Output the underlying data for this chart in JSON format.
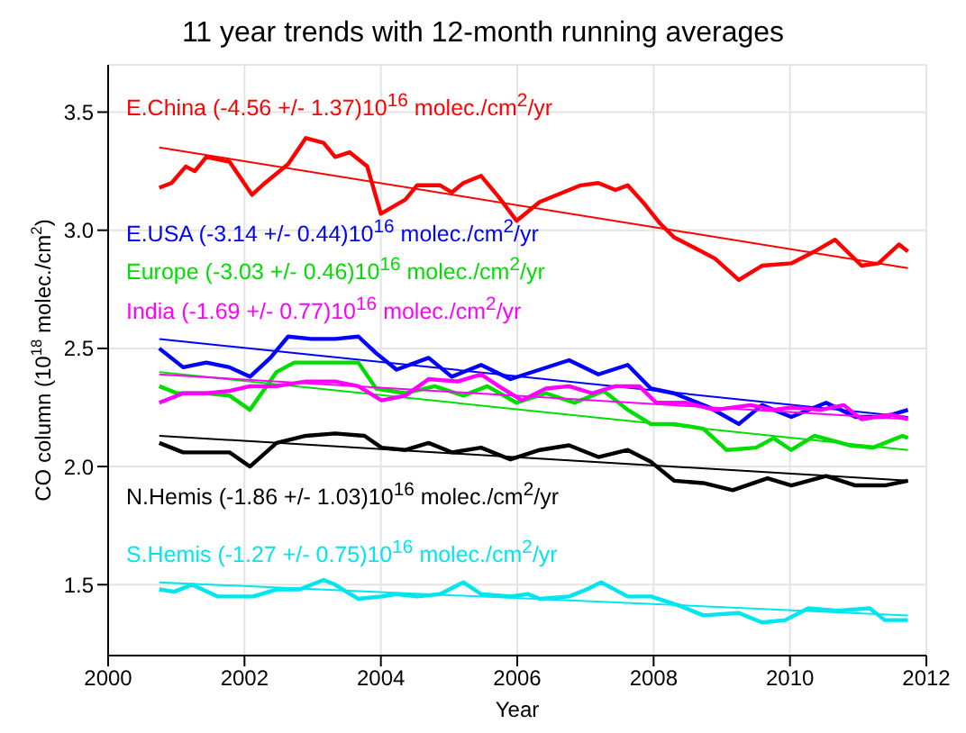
{
  "chart_data": {
    "type": "line",
    "title": "11 year trends with 12-month running averages",
    "xlabel": "Year",
    "ylabel": "CO column (10$^{18}$ molec./cm$^{2}$)",
    "xlim": [
      2000,
      2012
    ],
    "xticks": [
      2000,
      2002,
      2004,
      2006,
      2008,
      2010,
      2012
    ],
    "ylim": [
      1.2,
      3.7
    ],
    "yticks": [
      1.5,
      {
        "value": 2,
        "label": "2.0"
      },
      2.5,
      {
        "value": 3,
        "label": "3.0"
      },
      3.5
    ],
    "grid": true,
    "marker": "none",
    "line_style": "solid",
    "series": [
      {
        "name": "E.China (-4.56 +/- 1.37)10$^{16}$ molec./cm$^{2}$/yr",
        "color": "#ff0000",
        "x": [
          2000.75,
          2000.93,
          2001.14,
          2001.27,
          2001.44,
          2001.78,
          2002.11,
          2002.3,
          2002.64,
          2002.9,
          2003.16,
          2003.33,
          2003.54,
          2003.8,
          2004.0,
          2004.36,
          2004.53,
          2004.87,
          2005.04,
          2005.21,
          2005.47,
          2005.73,
          2005.99,
          2006.33,
          2006.93,
          2007.19,
          2007.44,
          2007.62,
          2007.87,
          2008.09,
          2008.3,
          2008.64,
          2008.9,
          2009.25,
          2009.59,
          2010.02,
          2010.36,
          2010.66,
          2011.05,
          2011.3,
          2011.6,
          2011.73
        ],
        "values": [
          3.18,
          3.2,
          3.27,
          3.25,
          3.31,
          3.29,
          3.15,
          3.2,
          3.28,
          3.39,
          3.37,
          3.31,
          3.33,
          3.27,
          3.07,
          3.13,
          3.19,
          3.19,
          3.16,
          3.2,
          3.23,
          3.14,
          3.04,
          3.12,
          3.19,
          3.2,
          3.17,
          3.19,
          3.11,
          3.03,
          2.97,
          2.92,
          2.88,
          2.79,
          2.85,
          2.86,
          2.91,
          2.96,
          2.85,
          2.86,
          2.94,
          2.91
        ]
      },
      {
        "color": "#ff0000",
        "x": [
          2000.75,
          2011.73
        ],
        "values": [
          3.35,
          2.84
        ]
      },
      {
        "name": "E.USA (-3.14 +/- 0.44)10$^{16}$ molec./cm$^{2}$/yr",
        "color": "#0000ff",
        "x": [
          2000.75,
          2001.1,
          2001.44,
          2001.78,
          2002.08,
          2002.38,
          2002.64,
          2002.98,
          2003.33,
          2003.67,
          2003.93,
          2004.23,
          2004.7,
          2005.04,
          2005.47,
          2005.9,
          2006.33,
          2006.76,
          2007.19,
          2007.62,
          2007.96,
          2008.3,
          2008.82,
          2009.25,
          2009.59,
          2010.02,
          2010.53,
          2010.96,
          2011.39,
          2011.73
        ],
        "values": [
          2.5,
          2.42,
          2.44,
          2.42,
          2.38,
          2.46,
          2.55,
          2.54,
          2.54,
          2.55,
          2.48,
          2.41,
          2.46,
          2.38,
          2.43,
          2.37,
          2.41,
          2.45,
          2.39,
          2.43,
          2.33,
          2.31,
          2.25,
          2.18,
          2.26,
          2.21,
          2.27,
          2.21,
          2.21,
          2.24
        ]
      },
      {
        "color": "#0000ff",
        "x": [
          2000.75,
          2011.73
        ],
        "values": [
          2.54,
          2.21
        ]
      },
      {
        "name": "Europe (-3.03 +/- 0.46)10$^{16}$ molec./cm$^{2}$/yr",
        "color": "#00dd00",
        "x": [
          2000.75,
          2001.01,
          2001.44,
          2001.78,
          2002.08,
          2002.47,
          2002.73,
          2003.33,
          2003.67,
          2003.93,
          2004.36,
          2004.79,
          2005.21,
          2005.56,
          2005.99,
          2006.42,
          2006.84,
          2007.27,
          2007.62,
          2007.96,
          2008.3,
          2008.73,
          2009.07,
          2009.5,
          2009.76,
          2010.02,
          2010.36,
          2010.87,
          2011.22,
          2011.65,
          2011.73
        ],
        "values": [
          2.34,
          2.31,
          2.31,
          2.3,
          2.24,
          2.4,
          2.44,
          2.44,
          2.44,
          2.33,
          2.31,
          2.34,
          2.3,
          2.34,
          2.27,
          2.31,
          2.27,
          2.32,
          2.24,
          2.18,
          2.18,
          2.16,
          2.07,
          2.08,
          2.12,
          2.07,
          2.13,
          2.09,
          2.08,
          2.13,
          2.12
        ]
      },
      {
        "color": "#00dd00",
        "x": [
          2000.75,
          2011.73
        ],
        "values": [
          2.4,
          2.07
        ]
      },
      {
        "name": "India (-1.69 +/- 0.77)10$^{16}$ molec./cm$^{2}$/yr",
        "color": "#ff00ff",
        "x": [
          2000.75,
          2001.1,
          2001.44,
          2001.78,
          2002.08,
          2002.47,
          2002.9,
          2003.33,
          2003.67,
          2004.01,
          2004.36,
          2004.7,
          2005.13,
          2005.47,
          2005.73,
          2006.07,
          2006.42,
          2006.76,
          2007.1,
          2007.44,
          2007.79,
          2008.04,
          2008.47,
          2008.9,
          2009.42,
          2009.76,
          2010.02,
          2010.45,
          2010.79,
          2011.05,
          2011.48,
          2011.73
        ],
        "values": [
          2.27,
          2.31,
          2.31,
          2.32,
          2.34,
          2.34,
          2.36,
          2.36,
          2.34,
          2.28,
          2.3,
          2.37,
          2.36,
          2.39,
          2.34,
          2.28,
          2.33,
          2.34,
          2.31,
          2.34,
          2.34,
          2.27,
          2.27,
          2.24,
          2.26,
          2.24,
          2.25,
          2.24,
          2.26,
          2.2,
          2.22,
          2.2
        ]
      },
      {
        "color": "#ff00ff",
        "x": [
          2000.75,
          2011.73
        ],
        "values": [
          2.39,
          2.2
        ]
      },
      {
        "name": "N.Hemis (-1.86 +/- 1.03)10$^{16}$ molec./cm$^{2}$/yr",
        "color": "#000000",
        "x": [
          2000.75,
          2001.1,
          2001.44,
          2001.78,
          2002.08,
          2002.47,
          2002.9,
          2003.33,
          2003.76,
          2004.01,
          2004.36,
          2004.7,
          2005.04,
          2005.47,
          2005.9,
          2006.33,
          2006.76,
          2007.19,
          2007.62,
          2007.96,
          2008.3,
          2008.73,
          2009.16,
          2009.67,
          2010.02,
          2010.53,
          2010.96,
          2011.39,
          2011.73
        ],
        "values": [
          2.1,
          2.06,
          2.06,
          2.06,
          2.0,
          2.1,
          2.13,
          2.14,
          2.13,
          2.08,
          2.07,
          2.1,
          2.06,
          2.08,
          2.03,
          2.07,
          2.09,
          2.04,
          2.07,
          2.02,
          1.94,
          1.93,
          1.9,
          1.95,
          1.92,
          1.96,
          1.92,
          1.92,
          1.94
        ]
      },
      {
        "color": "#000000",
        "x": [
          2000.75,
          2011.73
        ],
        "values": [
          2.13,
          1.94
        ]
      },
      {
        "name": "S.Hemis (-1.27 +/- 0.75)10$^{16}$ molec./cm$^{2}$/yr",
        "color": "#00e5ee",
        "x": [
          2000.75,
          2000.97,
          2001.23,
          2001.61,
          2002.13,
          2002.47,
          2002.81,
          2003.16,
          2003.33,
          2003.67,
          2004.01,
          2004.23,
          2004.53,
          2004.87,
          2005.21,
          2005.47,
          2005.9,
          2006.16,
          2006.33,
          2006.76,
          2007.02,
          2007.23,
          2007.62,
          2007.96,
          2008.39,
          2008.73,
          2009.25,
          2009.59,
          2009.93,
          2010.27,
          2010.7,
          2011.17,
          2011.39,
          2011.73
        ],
        "values": [
          1.48,
          1.47,
          1.5,
          1.45,
          1.45,
          1.48,
          1.48,
          1.52,
          1.5,
          1.44,
          1.45,
          1.46,
          1.45,
          1.46,
          1.51,
          1.46,
          1.45,
          1.46,
          1.44,
          1.45,
          1.48,
          1.51,
          1.45,
          1.45,
          1.41,
          1.37,
          1.38,
          1.34,
          1.35,
          1.4,
          1.39,
          1.4,
          1.35,
          1.35
        ]
      },
      {
        "color": "#00e5ee",
        "x": [
          2000.75,
          2011.73
        ],
        "values": [
          1.51,
          1.37
        ]
      }
    ]
  }
}
